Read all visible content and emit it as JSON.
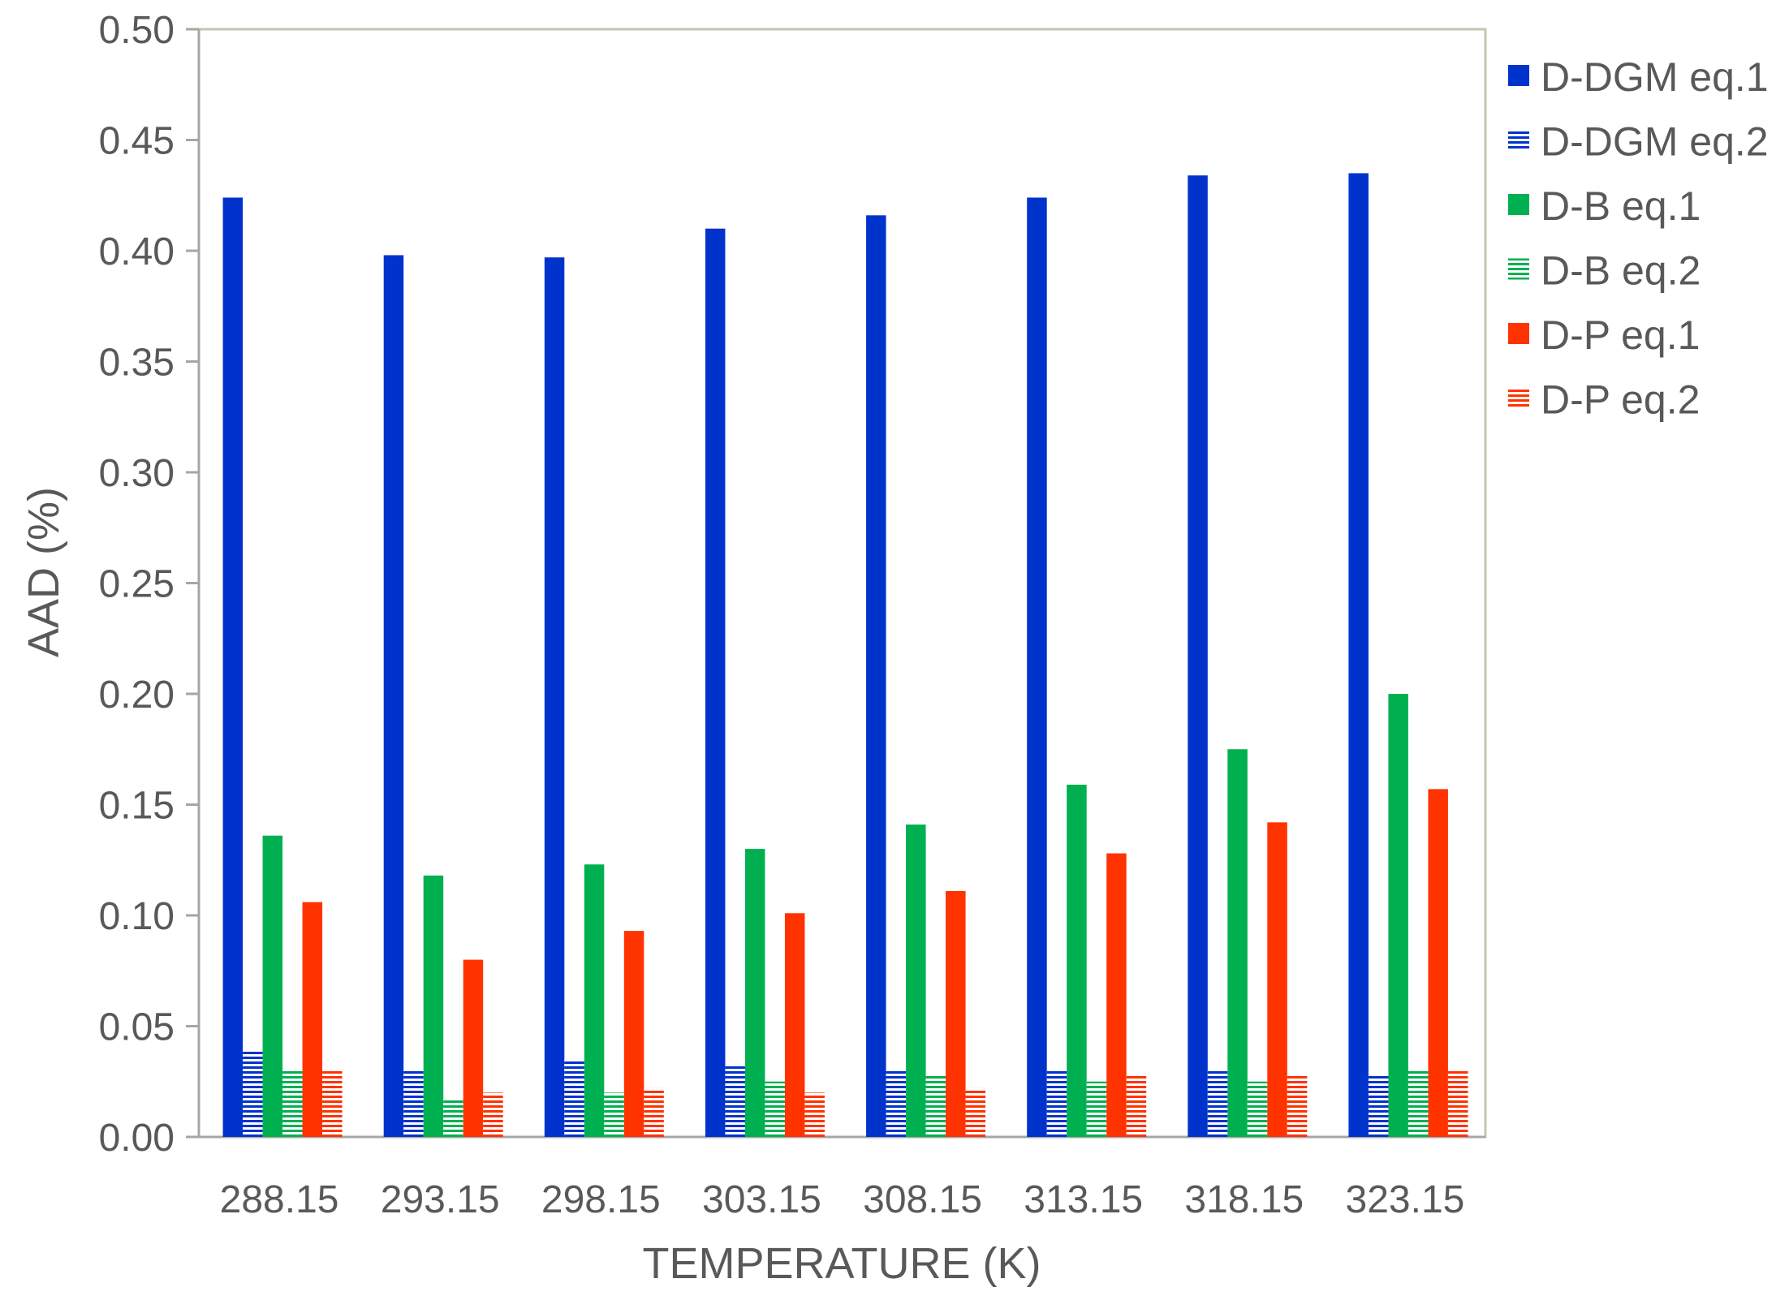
{
  "chart_data": {
    "type": "bar",
    "xlabel": "TEMPERATURE  (K)",
    "ylabel": "AAD (%)",
    "ylim": [
      0,
      0.5
    ],
    "yticks": [
      "0.00",
      "0.05",
      "0.10",
      "0.15",
      "0.20",
      "0.25",
      "0.30",
      "0.35",
      "0.40",
      "0.45",
      "0.50"
    ],
    "categories": [
      "288.15",
      "293.15",
      "298.15",
      "303.15",
      "308.15",
      "313.15",
      "318.15",
      "323.15"
    ],
    "grid": false,
    "legend_position": "right",
    "series": [
      {
        "name": "D-DGM eq.1",
        "color": "#0033cc",
        "pattern": "solid",
        "values": [
          0.424,
          0.398,
          0.397,
          0.41,
          0.416,
          0.424,
          0.434,
          0.435
        ]
      },
      {
        "name": "D-DGM eq.2",
        "color": "#0033cc",
        "pattern": "horizontal-lines",
        "values": [
          0.039,
          0.03,
          0.035,
          0.032,
          0.03,
          0.03,
          0.03,
          0.028
        ]
      },
      {
        "name": "D-B eq.1",
        "color": "#00b050",
        "pattern": "solid",
        "values": [
          0.136,
          0.118,
          0.123,
          0.13,
          0.141,
          0.159,
          0.175,
          0.2
        ]
      },
      {
        "name": "D-B eq.2",
        "color": "#00b050",
        "pattern": "horizontal-lines",
        "values": [
          0.03,
          0.017,
          0.02,
          0.025,
          0.028,
          0.025,
          0.025,
          0.03
        ]
      },
      {
        "name": "D-P eq.1",
        "color": "#ff3300",
        "pattern": "solid",
        "values": [
          0.106,
          0.08,
          0.093,
          0.101,
          0.111,
          0.128,
          0.142,
          0.157
        ]
      },
      {
        "name": "D-P eq.2",
        "color": "#ff3300",
        "pattern": "horizontal-lines",
        "values": [
          0.03,
          0.02,
          0.022,
          0.02,
          0.022,
          0.028,
          0.028,
          0.03
        ]
      }
    ]
  }
}
